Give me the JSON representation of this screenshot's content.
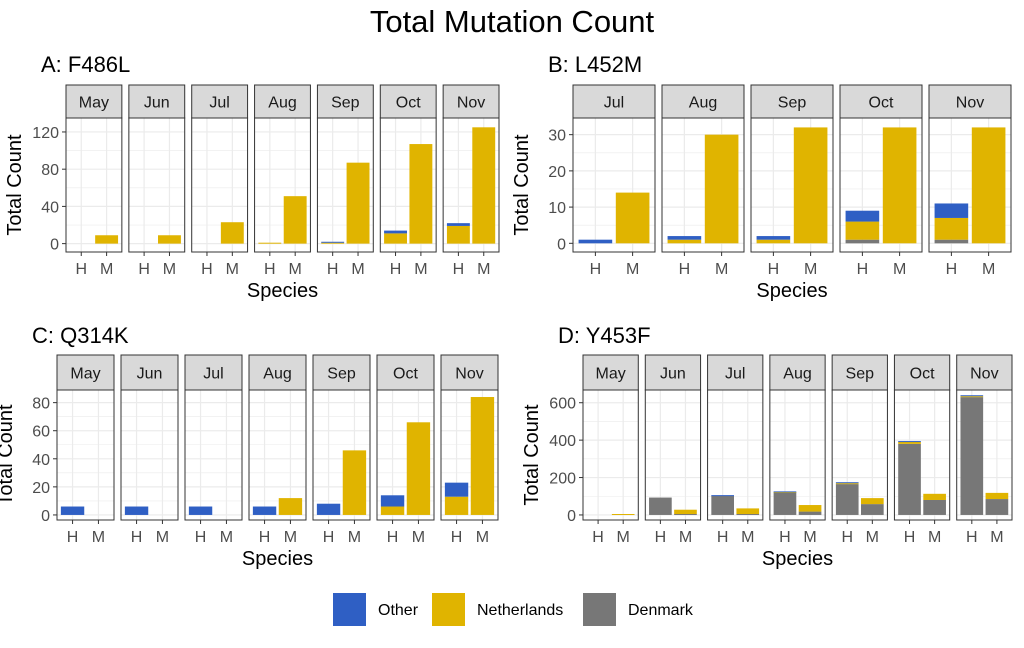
{
  "chart_data": {
    "type": "bar",
    "title": "Total Mutation Count",
    "stacking": "stacked",
    "legend": {
      "placement": "bottom",
      "entries": [
        {
          "name": "Other",
          "color": "#2f5fc4"
        },
        {
          "name": "Netherlands",
          "color": "#e0b400"
        },
        {
          "name": "Denmark",
          "color": "#777777"
        }
      ]
    },
    "grid": true,
    "panels": [
      {
        "title": "A: F486L",
        "xlabel": "Species",
        "ylabel": "Total Count",
        "ylim": [
          -9,
          135
        ],
        "yticks": [
          0,
          40,
          80,
          120
        ],
        "facets": [
          {
            "month": "May",
            "H": {
              "Denmark": 0,
              "Netherlands": 0,
              "Other": 0
            },
            "M": {
              "Denmark": 0,
              "Netherlands": 9,
              "Other": 0
            }
          },
          {
            "month": "Jun",
            "H": {
              "Denmark": 0,
              "Netherlands": 0,
              "Other": 0
            },
            "M": {
              "Denmark": 0,
              "Netherlands": 9,
              "Other": 0
            }
          },
          {
            "month": "Jul",
            "H": {
              "Denmark": 0,
              "Netherlands": 0,
              "Other": 0
            },
            "M": {
              "Denmark": 0,
              "Netherlands": 23,
              "Other": 0
            }
          },
          {
            "month": "Aug",
            "H": {
              "Denmark": 0,
              "Netherlands": 1,
              "Other": 0
            },
            "M": {
              "Denmark": 0,
              "Netherlands": 51,
              "Other": 0
            }
          },
          {
            "month": "Sep",
            "H": {
              "Denmark": 0,
              "Netherlands": 1,
              "Other": 1
            },
            "M": {
              "Denmark": 0,
              "Netherlands": 87,
              "Other": 0
            }
          },
          {
            "month": "Oct",
            "H": {
              "Denmark": 0,
              "Netherlands": 11,
              "Other": 3
            },
            "M": {
              "Denmark": 0,
              "Netherlands": 107,
              "Other": 0
            }
          },
          {
            "month": "Nov",
            "H": {
              "Denmark": 0,
              "Netherlands": 19,
              "Other": 3
            },
            "M": {
              "Denmark": 0,
              "Netherlands": 125,
              "Other": 0
            }
          }
        ]
      },
      {
        "title": "B: L452M",
        "xlabel": "Species",
        "ylabel": "Total Count",
        "ylim": [
          -2.4,
          34.6
        ],
        "yticks": [
          0,
          10,
          20,
          30
        ],
        "facets": [
          {
            "month": "Jul",
            "H": {
              "Denmark": 0,
              "Netherlands": 0,
              "Other": 1
            },
            "M": {
              "Denmark": 0,
              "Netherlands": 14,
              "Other": 0
            }
          },
          {
            "month": "Aug",
            "H": {
              "Denmark": 0,
              "Netherlands": 1,
              "Other": 1
            },
            "M": {
              "Denmark": 0,
              "Netherlands": 30,
              "Other": 0
            }
          },
          {
            "month": "Sep",
            "H": {
              "Denmark": 0,
              "Netherlands": 1,
              "Other": 1
            },
            "M": {
              "Denmark": 0,
              "Netherlands": 32,
              "Other": 0
            }
          },
          {
            "month": "Oct",
            "H": {
              "Denmark": 1,
              "Netherlands": 5,
              "Other": 3
            },
            "M": {
              "Denmark": 0,
              "Netherlands": 32,
              "Other": 0
            }
          },
          {
            "month": "Nov",
            "H": {
              "Denmark": 1,
              "Netherlands": 6,
              "Other": 4
            },
            "M": {
              "Denmark": 0,
              "Netherlands": 32,
              "Other": 0
            }
          }
        ]
      },
      {
        "title": "C: Q314K",
        "xlabel": "Species",
        "ylabel": "Total Count",
        "ylim": [
          -3.6,
          89
        ],
        "yticks": [
          0,
          20,
          40,
          60,
          80
        ],
        "facets": [
          {
            "month": "May",
            "H": {
              "Denmark": 0,
              "Netherlands": 0,
              "Other": 6
            },
            "M": {
              "Denmark": 0,
              "Netherlands": 0,
              "Other": 0
            }
          },
          {
            "month": "Jun",
            "H": {
              "Denmark": 0,
              "Netherlands": 0,
              "Other": 6
            },
            "M": {
              "Denmark": 0,
              "Netherlands": 0,
              "Other": 0
            }
          },
          {
            "month": "Jul",
            "H": {
              "Denmark": 0,
              "Netherlands": 0,
              "Other": 6
            },
            "M": {
              "Denmark": 0,
              "Netherlands": 0,
              "Other": 0
            }
          },
          {
            "month": "Aug",
            "H": {
              "Denmark": 0,
              "Netherlands": 0,
              "Other": 6
            },
            "M": {
              "Denmark": 0,
              "Netherlands": 12,
              "Other": 0
            }
          },
          {
            "month": "Sep",
            "H": {
              "Denmark": 0,
              "Netherlands": 0,
              "Other": 8
            },
            "M": {
              "Denmark": 0,
              "Netherlands": 46,
              "Other": 0
            }
          },
          {
            "month": "Oct",
            "H": {
              "Denmark": 0,
              "Netherlands": 6,
              "Other": 8
            },
            "M": {
              "Denmark": 0,
              "Netherlands": 66,
              "Other": 0
            }
          },
          {
            "month": "Nov",
            "H": {
              "Denmark": 0,
              "Netherlands": 13,
              "Other": 10
            },
            "M": {
              "Denmark": 0,
              "Netherlands": 84,
              "Other": 0
            }
          }
        ]
      },
      {
        "title": "D: Y453F",
        "xlabel": "Species",
        "ylabel": "Total Count",
        "ylim": [
          -27,
          668
        ],
        "yticks": [
          0,
          200,
          400,
          600
        ],
        "facets": [
          {
            "month": "May",
            "H": {
              "Denmark": 0,
              "Netherlands": 0,
              "Other": 0
            },
            "M": {
              "Denmark": 0,
              "Netherlands": 5,
              "Other": 0
            }
          },
          {
            "month": "Jun",
            "H": {
              "Denmark": 93,
              "Netherlands": 0,
              "Other": 0
            },
            "M": {
              "Denmark": 5,
              "Netherlands": 23,
              "Other": 0
            }
          },
          {
            "month": "Jul",
            "H": {
              "Denmark": 103,
              "Netherlands": 0,
              "Other": 3
            },
            "M": {
              "Denmark": 5,
              "Netherlands": 30,
              "Other": 0
            }
          },
          {
            "month": "Aug",
            "H": {
              "Denmark": 120,
              "Netherlands": 3,
              "Other": 3
            },
            "M": {
              "Denmark": 18,
              "Netherlands": 35,
              "Other": 0
            }
          },
          {
            "month": "Sep",
            "H": {
              "Denmark": 165,
              "Netherlands": 5,
              "Other": 5
            },
            "M": {
              "Denmark": 58,
              "Netherlands": 32,
              "Other": 0
            }
          },
          {
            "month": "Oct",
            "H": {
              "Denmark": 380,
              "Netherlands": 10,
              "Other": 5
            },
            "M": {
              "Denmark": 80,
              "Netherlands": 33,
              "Other": 0
            }
          },
          {
            "month": "Nov",
            "H": {
              "Denmark": 630,
              "Netherlands": 5,
              "Other": 5
            },
            "M": {
              "Denmark": 85,
              "Netherlands": 33,
              "Other": 0
            }
          }
        ]
      }
    ]
  }
}
